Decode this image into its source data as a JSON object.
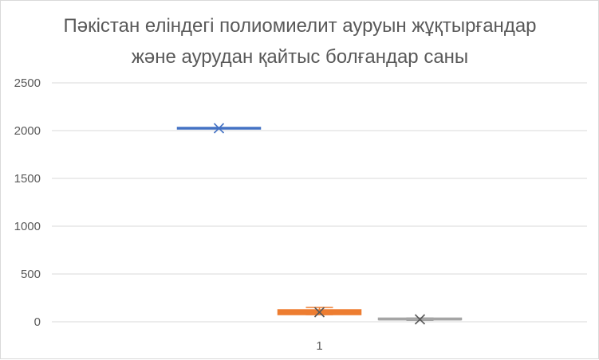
{
  "chart_data": {
    "type": "box",
    "title_lines": [
      "Пәкістан еліндегі полиомиелит ауруын жұқтырғандар",
      "және аурудан қайтыс болғандар саны"
    ],
    "xlabel": "",
    "ylabel": "",
    "categories": [
      "1"
    ],
    "ylim": [
      0,
      2500
    ],
    "yticks": [
      0,
      500,
      1000,
      1500,
      2000,
      2500
    ],
    "grid": true,
    "legend": "none",
    "series": [
      {
        "min": 2025,
        "q1": 2025,
        "median": 2025,
        "q3": 2025,
        "max": 2025,
        "mean": 2025,
        "color": "#4472c4"
      },
      {
        "min": 75,
        "q1": 75,
        "median": 100,
        "q3": 125,
        "max": 150,
        "mean": 100,
        "color": "#ed7d31"
      },
      {
        "min": 15,
        "q1": 15,
        "median": 22,
        "q3": 30,
        "max": 40,
        "mean": 25,
        "color": "#a5a5a5"
      }
    ]
  }
}
